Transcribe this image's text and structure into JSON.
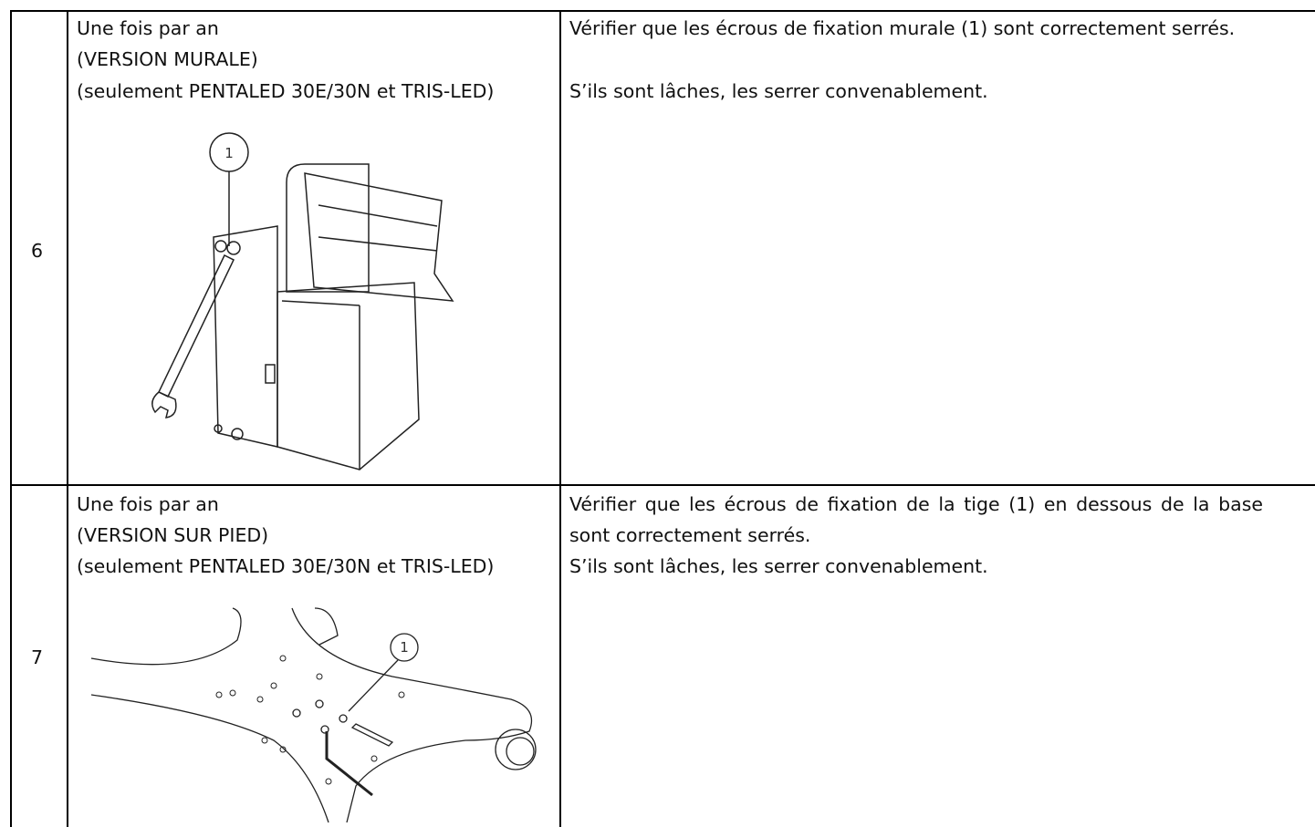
{
  "table": {
    "rows": [
      {
        "number": "6",
        "frequency": [
          "Une fois par an",
          "(VERSION MURALE)",
          "(seulement PENTALED 30E/30N et TRIS-LED)"
        ],
        "callout": "1",
        "instructions": [
          "Vérifier que les écrous de fixation murale (1) sont correctement serrés.",
          "S’ils sont lâches, les serrer convenablement."
        ]
      },
      {
        "number": "7",
        "frequency": [
          "Une fois par an",
          "(VERSION SUR PIED)",
          "(seulement PENTALED 30E/30N et TRIS-LED)"
        ],
        "callout": "1",
        "instructions": [
          "Vérifier que les écrous de fixation de la tige (1) en dessous de la base sont correctement serrés.",
          "S’ils sont lâches, les serrer convenablement."
        ]
      }
    ]
  }
}
